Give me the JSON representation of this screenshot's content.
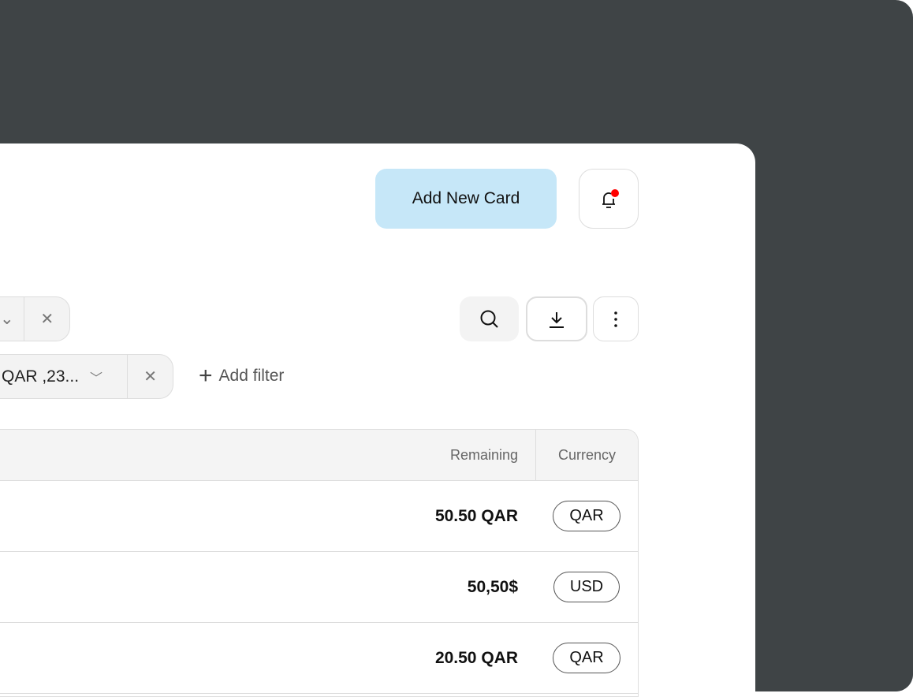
{
  "header": {
    "add_card_label": "Add New Card",
    "notification_dot_color": "#ff0000"
  },
  "filters": [
    {
      "value": ""
    },
    {
      "value": "QAR ,23..."
    }
  ],
  "add_filter_label": "Add filter",
  "toolbar": {
    "icons": [
      "search-icon",
      "download-icon",
      "more-vertical-icon"
    ]
  },
  "table": {
    "columns": [
      "Remaining",
      "Currency"
    ],
    "rows": [
      {
        "remaining": "50.50 QAR",
        "currency": "QAR"
      },
      {
        "remaining": "50,50$",
        "currency": "USD"
      },
      {
        "remaining": "20.50 QAR",
        "currency": "QAR"
      }
    ]
  }
}
